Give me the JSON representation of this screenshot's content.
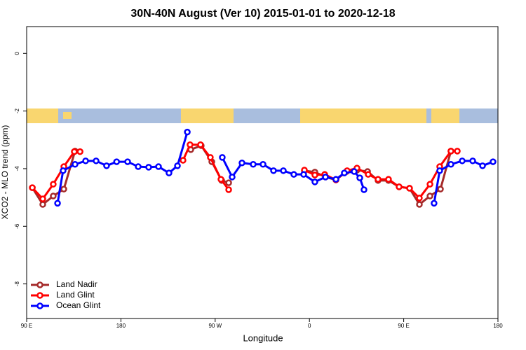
{
  "chart_data": {
    "type": "line",
    "title": "30N-40N August (Ver 10)   2015-01-01 to 2020-12-18",
    "x_label": "Longitude",
    "y_label": "XCO2 - MLO trend (ppm)",
    "xlim": [
      90,
      540
    ],
    "ylim": [
      -9.2,
      0.93
    ],
    "xticks": [
      {
        "value": 90,
        "label": "90 E"
      },
      180,
      {
        "value": 270,
        "label": "90 W"
      },
      {
        "value": 360,
        "label": "0"
      },
      {
        "value": 450,
        "label": "90 E"
      },
      {
        "value": 540,
        "label": "180"
      }
    ],
    "yticks": [
      -8,
      -6,
      -4,
      -2,
      0
    ],
    "legend": "bottom-left",
    "series": [
      {
        "name": "Land Nadir",
        "color": "#a52a2a",
        "x": [
          95.4,
          105.4,
          115.4,
          125.5,
          136.2,
          null,
          246.7,
          256.7,
          266.8,
          276.2,
          282.9,
          null,
          355.2,
          365.2,
          375.3,
          385.3,
          395.4,
          405.4,
          415.5,
          425.5,
          435.5,
          445.6,
          455.6,
          465.0,
          475.1,
          485.1,
          495.1
        ],
        "values": [
          -4.66,
          -5.24,
          -4.95,
          -4.71,
          -3.39,
          null,
          -3.34,
          -3.2,
          -3.76,
          -4.41,
          -4.49,
          null,
          -4.07,
          -4.12,
          -4.29,
          -4.39,
          -4.1,
          -4.05,
          -4.1,
          -4.41,
          -4.41,
          -4.63,
          -4.68,
          -5.24,
          -4.95,
          -4.71,
          -3.39
        ]
      },
      {
        "name": "Land Glint",
        "color": "#ff0000",
        "x": [
          95.4,
          105.4,
          115.4,
          125.5,
          135.5,
          141.0,
          null,
          239.3,
          246.0,
          256.0,
          265.4,
          275.5,
          282.9,
          null,
          355.2,
          365.2,
          374.6,
          385.3,
          396.0,
          405.4,
          416.1,
          425.5,
          435.5,
          445.6,
          455.6,
          465.0,
          475.1,
          484.4,
          495.1,
          501.2
        ],
        "values": [
          -4.66,
          -5.05,
          -4.54,
          -3.93,
          -3.41,
          -3.41,
          null,
          -3.71,
          -3.17,
          -3.17,
          -3.61,
          -4.37,
          -4.73,
          null,
          -4.05,
          -4.22,
          -4.2,
          -4.39,
          -4.07,
          -3.98,
          -4.2,
          -4.37,
          -4.37,
          -4.63,
          -4.68,
          -5.02,
          -4.54,
          -3.93,
          -3.39,
          -3.39
        ]
      },
      {
        "name": "Ocean Glint",
        "color": "#0000ff",
        "x": [
          119.5,
          124.8,
          136.2,
          146.3,
          156.3,
          166.3,
          175.9,
          186.4,
          196.5,
          206.5,
          215.9,
          225.9,
          234.0,
          243.4,
          null,
          276.8,
          286.2,
          295.6,
          306.3,
          315.7,
          325.7,
          335.1,
          345.1,
          354.5,
          365.2,
          375.3,
          385.3,
          393.3,
          402.7,
          408.1,
          412.1,
          null,
          479.0,
          484.4,
          495.1,
          505.9,
          515.9,
          525.3,
          535.3
        ],
        "values": [
          -5.2,
          -4.07,
          -3.85,
          -3.73,
          -3.73,
          -3.9,
          -3.76,
          -3.76,
          -3.93,
          -3.95,
          -3.93,
          -4.15,
          -3.9,
          -2.73,
          null,
          -3.61,
          -4.29,
          -3.8,
          -3.85,
          -3.85,
          -4.07,
          -4.07,
          -4.2,
          -4.2,
          -4.46,
          -4.29,
          -4.37,
          -4.15,
          -4.1,
          -4.32,
          -4.73,
          null,
          -5.2,
          -4.07,
          -3.85,
          -3.73,
          -3.73,
          -3.9,
          -3.76
        ]
      }
    ]
  }
}
